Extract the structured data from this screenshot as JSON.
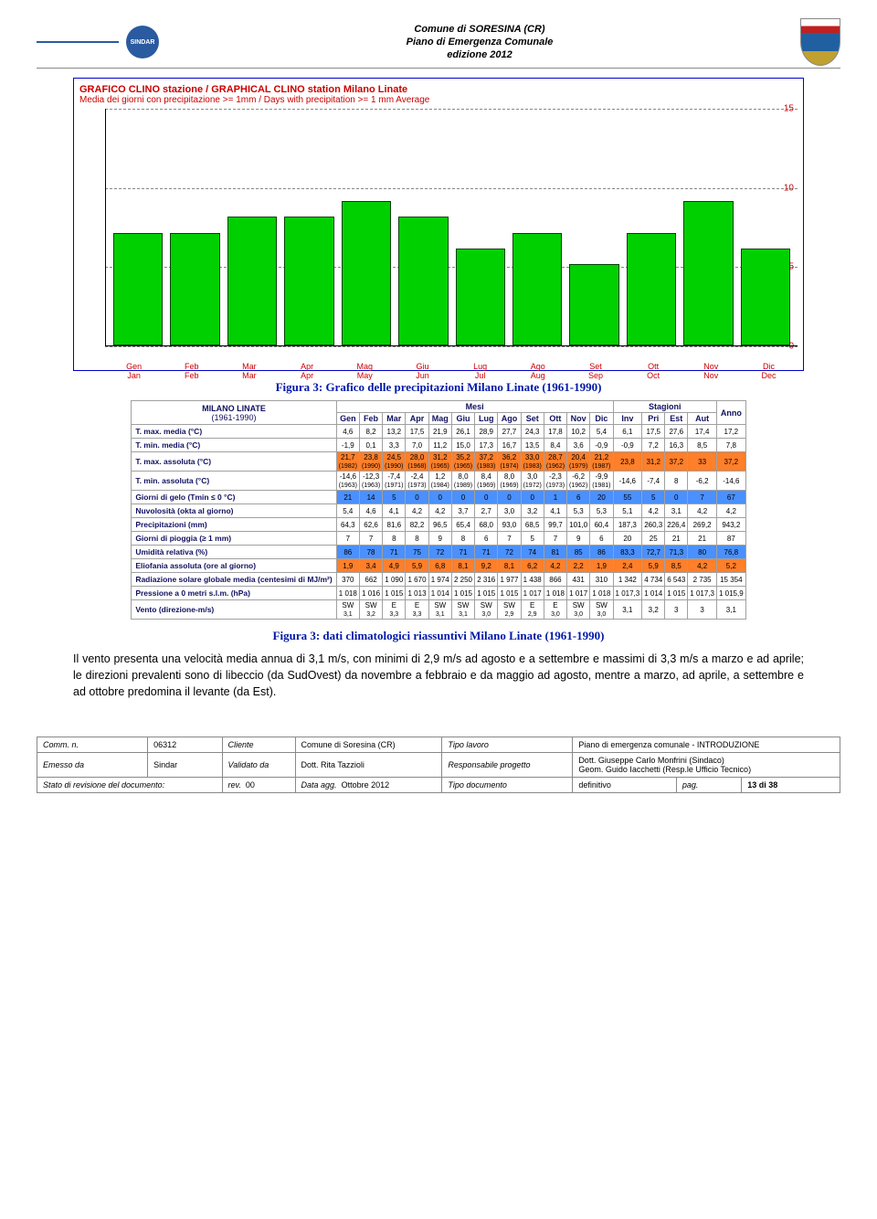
{
  "header": {
    "line1": "Comune di SORESINA (CR)",
    "line2": "Piano di Emergenza Comunale",
    "line3": "edizione 2012",
    "sindar_label": "SINDAR"
  },
  "chart": {
    "type": "bar",
    "title": "GRAFICO CLINO stazione / GRAPHICAL CLINO station Milano Linate",
    "subtitle": "Media dei giorni con precipitazione >=  1mm / Days with precipitation >= 1 mm Average",
    "ylim": [
      0,
      15
    ],
    "yticks": [
      0,
      5,
      10,
      15
    ],
    "bar_color": "#00d000",
    "bar_border": "#004000",
    "grid_color": "#888888",
    "months_it": [
      "Gen",
      "Feb",
      "Mar",
      "Apr",
      "Mag",
      "Giu",
      "Lug",
      "Ago",
      "Set",
      "Ott",
      "Nov",
      "Dic"
    ],
    "months_en": [
      "Jan",
      "Feb",
      "Mar",
      "Apr",
      "May",
      "Jun",
      "Jul",
      "Aug",
      "Sep",
      "Oct",
      "Nov",
      "Dec"
    ],
    "values": [
      7,
      7,
      8,
      8,
      9,
      8,
      6,
      7,
      5,
      7,
      9,
      6
    ]
  },
  "caption1": "Figura 3: Grafico delle precipitazioni Milano Linate (1961-1990)",
  "table": {
    "station": "MILANO LINATE",
    "period": "(1961-1990)",
    "group_mesi": "Mesi",
    "group_stag": "Stagioni",
    "anno": "Anno",
    "months": [
      "Gen",
      "Feb",
      "Mar",
      "Apr",
      "Mag",
      "Giu",
      "Lug",
      "Ago",
      "Set",
      "Ott",
      "Nov",
      "Dic"
    ],
    "seasons": [
      "Inv",
      "Pri",
      "Est",
      "Aut"
    ],
    "rows": [
      {
        "label": "T. max. media (°C)",
        "vals": [
          "4,6",
          "8,2",
          "13,2",
          "17,5",
          "21,9",
          "26,1",
          "28,9",
          "27,7",
          "24,3",
          "17,8",
          "10,2",
          "5,4"
        ],
        "seas": [
          "6,1",
          "17,5",
          "27,6",
          "17,4"
        ],
        "anno": "17,2"
      },
      {
        "label": "T. min. media (°C)",
        "vals": [
          "-1,9",
          "0,1",
          "3,3",
          "7,0",
          "11,2",
          "15,0",
          "17,3",
          "16,7",
          "13,5",
          "8,4",
          "3,6",
          "-0,9"
        ],
        "seas": [
          "-0,9",
          "7,2",
          "16,3",
          "8,5"
        ],
        "anno": "7,8"
      },
      {
        "label": "T. max. assoluta (°C)",
        "vals": [
          "21,7",
          "23,8",
          "24,5",
          "28,0",
          "31,2",
          "35,2",
          "37,2",
          "36,2",
          "33,0",
          "28,7",
          "20,4",
          "21,2"
        ],
        "sub": [
          "(1982)",
          "(1990)",
          "(1990)",
          "(1968)",
          "(1965)",
          "(1965)",
          "(1983)",
          "(1974)",
          "(1983)",
          "(1962)",
          "(1979)",
          "(1987)"
        ],
        "seas": [
          "23,8",
          "31,2",
          "37,2",
          "33"
        ],
        "anno": "37,2",
        "hl": "hot"
      },
      {
        "label": "T. min. assoluta (°C)",
        "vals": [
          "-14,6",
          "-12,3",
          "-7,4",
          "-2,4",
          "1,2",
          "8,0",
          "8,4",
          "8,0",
          "3,0",
          "-2,3",
          "-6,2",
          "-9,9"
        ],
        "sub": [
          "(1963)",
          "(1963)",
          "(1971)",
          "(1973)",
          "(1984)",
          "(1989)",
          "(1969)",
          "(1969)",
          "(1972)",
          "(1973)",
          "(1962)",
          "(1981)"
        ],
        "seas": [
          "-14,6",
          "-7,4",
          "8",
          "-6,2"
        ],
        "anno": "-14,6"
      },
      {
        "label": "Giorni di gelo (Tmin ≤ 0 °C)",
        "vals": [
          "21",
          "14",
          "5",
          "0",
          "0",
          "0",
          "0",
          "0",
          "0",
          "1",
          "6",
          "20"
        ],
        "seas": [
          "55",
          "5",
          "0",
          "7"
        ],
        "anno": "67",
        "hl": "cold"
      },
      {
        "label": "Nuvolosità (okta al giorno)",
        "vals": [
          "5,4",
          "4,6",
          "4,1",
          "4,2",
          "4,2",
          "3,7",
          "2,7",
          "3,0",
          "3,2",
          "4,1",
          "5,3",
          "5,3"
        ],
        "seas": [
          "5,1",
          "4,2",
          "3,1",
          "4,2"
        ],
        "anno": "4,2"
      },
      {
        "label": "Precipitazioni (mm)",
        "vals": [
          "64,3",
          "62,6",
          "81,6",
          "82,2",
          "96,5",
          "65,4",
          "68,0",
          "93,0",
          "68,5",
          "99,7",
          "101,0",
          "60,4"
        ],
        "seas": [
          "187,3",
          "260,3",
          "226,4",
          "269,2"
        ],
        "anno": "943,2"
      },
      {
        "label": "Giorni di pioggia (≥ 1 mm)",
        "vals": [
          "7",
          "7",
          "8",
          "8",
          "9",
          "8",
          "6",
          "7",
          "5",
          "7",
          "9",
          "6"
        ],
        "seas": [
          "20",
          "25",
          "21",
          "21"
        ],
        "anno": "87"
      },
      {
        "label": "Umidità relativa (%)",
        "vals": [
          "86",
          "78",
          "71",
          "75",
          "72",
          "71",
          "71",
          "72",
          "74",
          "81",
          "85",
          "86"
        ],
        "seas": [
          "83,3",
          "72,7",
          "71,3",
          "80"
        ],
        "anno": "76,8",
        "hl": "cold"
      },
      {
        "label": "Eliofania assoluta (ore al giorno)",
        "vals": [
          "1,9",
          "3,4",
          "4,9",
          "5,9",
          "6,8",
          "8,1",
          "9,2",
          "8,1",
          "6,2",
          "4,2",
          "2,2",
          "1,9"
        ],
        "seas": [
          "2,4",
          "5,9",
          "8,5",
          "4,2"
        ],
        "anno": "5,2",
        "hl": "hot"
      },
      {
        "label": "Radiazione solare globale media (centesimi di MJ/m²)",
        "vals": [
          "370",
          "662",
          "1 090",
          "1 670",
          "1 974",
          "2 250",
          "2 316",
          "1 977",
          "1 438",
          "866",
          "431",
          "310"
        ],
        "seas": [
          "1 342",
          "4 734",
          "6 543",
          "2 735"
        ],
        "anno": "15 354"
      },
      {
        "label": "Pressione a 0 metri s.l.m. (hPa)",
        "vals": [
          "1 018",
          "1 016",
          "1 015",
          "1 013",
          "1 014",
          "1 015",
          "1 015",
          "1 015",
          "1 017",
          "1 018",
          "1 017",
          "1 018"
        ],
        "seas": [
          "1 017,3",
          "1 014",
          "1 015",
          "1 017,3"
        ],
        "anno": "1 015,9"
      },
      {
        "label": "Vento (direzione-m/s)",
        "vals": [
          "SW",
          "SW",
          "E",
          "E",
          "SW",
          "SW",
          "SW",
          "SW",
          "E",
          "E",
          "SW",
          "SW"
        ],
        "sub": [
          "3,1",
          "3,2",
          "3,3",
          "3,3",
          "3,1",
          "3,1",
          "3,0",
          "2,9",
          "2,9",
          "3,0",
          "3,0",
          "3,0"
        ],
        "seas": [
          "3,1",
          "3,2",
          "3",
          "3"
        ],
        "anno": "3,1"
      }
    ]
  },
  "caption2": "Figura 3: dati climatologici riassuntivi  Milano Linate (1961-1990)",
  "paragraph": "Il vento presenta una velocità media annua di 3,1 m/s, con minimi di 2,9 m/s ad agosto e a settembre e massimi di 3,3 m/s a marzo e ad aprile; le direzioni prevalenti sono di libeccio (da SudOvest) da novembre a febbraio e da maggio ad agosto, mentre a marzo, ad aprile, a settembre e ad ottobre predomina il levante (da Est).",
  "footer": {
    "row1": {
      "comm_k": "Comm. n.",
      "comm_v": "06312",
      "cliente_k": "Cliente",
      "cliente_v": "Comune di Soresina (CR)",
      "tipo_k": "Tipo lavoro",
      "tipo_v": "Piano di emergenza comunale - INTRODUZIONE"
    },
    "row2": {
      "em_k": "Emesso da",
      "em_v": "Sindar",
      "val_k": "Validato da",
      "val_v": "Dott. Rita Tazzioli",
      "resp_k": "Responsabile progetto",
      "resp_v1": "Dott. Giuseppe Carlo Monfrini (Sindaco)",
      "resp_v2": "Geom. Guido Iacchetti (Resp.le Ufficio Tecnico)"
    },
    "row3": {
      "stato_k": "Stato di revisione del documento:",
      "rev_k": "rev.",
      "rev_v": "00",
      "data_k": "Data agg.",
      "data_v": "Ottobre 2012",
      "td_k": "Tipo documento",
      "td_v": "definitivo",
      "pag_k": "pag.",
      "pag_v": "13 di 38"
    }
  }
}
